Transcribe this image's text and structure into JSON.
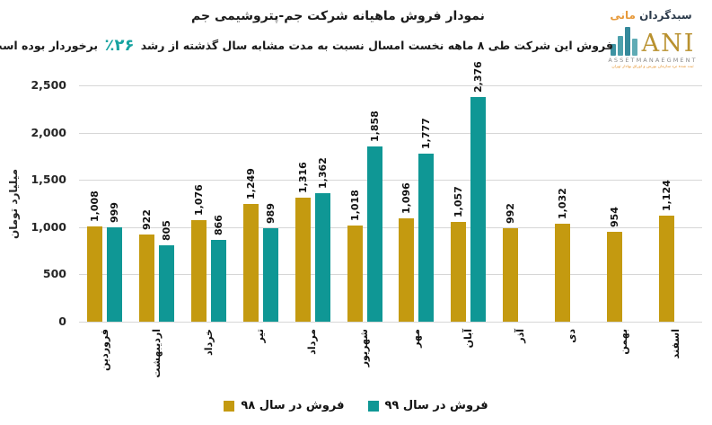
{
  "header": {
    "title": "نمودار فروش ماهیانه شرکت جم-پتروشیمی جم",
    "subtitle_before": "فروش این شرکت طی ۸ ماهه نخست امسال نسبت به مدت مشابه سال گذشته از رشد",
    "subtitle_growth": "٪۲۶",
    "subtitle_after": "برخوردار بوده است."
  },
  "logo": {
    "brand_fa_main": "سبدگردان",
    "brand_fa_accent": "مانی",
    "brand_latin": "ANI",
    "brand_latin_sub": "ASSETMANAEGMENT",
    "tagline": "ثبت شده نزد سازمان بورس و اوراق بهادار تهران"
  },
  "chart_data": {
    "type": "bar",
    "title": "نمودار فروش ماهیانه شرکت جم-پتروشیمی جم",
    "categories": [
      "فروردین",
      "اردیبهشت",
      "خرداد",
      "تیر",
      "مرداد",
      "شهریور",
      "مهر",
      "آبان",
      "آذر",
      "دی",
      "بهمن",
      "اسفند"
    ],
    "series": [
      {
        "name": "فروش در سال ۹۸",
        "color": "#C49A10",
        "values": [
          1008,
          922,
          1076,
          1249,
          1316,
          1018,
          1096,
          1057,
          992,
          1032,
          954,
          1124
        ]
      },
      {
        "name": "فروش در سال ۹۹",
        "color": "#0F9795",
        "values": [
          999,
          805,
          866,
          989,
          1362,
          1858,
          1777,
          2376,
          null,
          null,
          null,
          null
        ]
      }
    ],
    "xlabel": "",
    "ylabel": "میلیارد تومان",
    "ylim": [
      0,
      2500
    ],
    "yticks": [
      0,
      500,
      1000,
      1500,
      2000,
      2500
    ],
    "ytick_labels": [
      "0",
      "500",
      "1,000",
      "1,500",
      "2,000",
      "2,500"
    ],
    "grid": true,
    "legend_position": "bottom",
    "accent_growth_color": "#17A3A1"
  }
}
